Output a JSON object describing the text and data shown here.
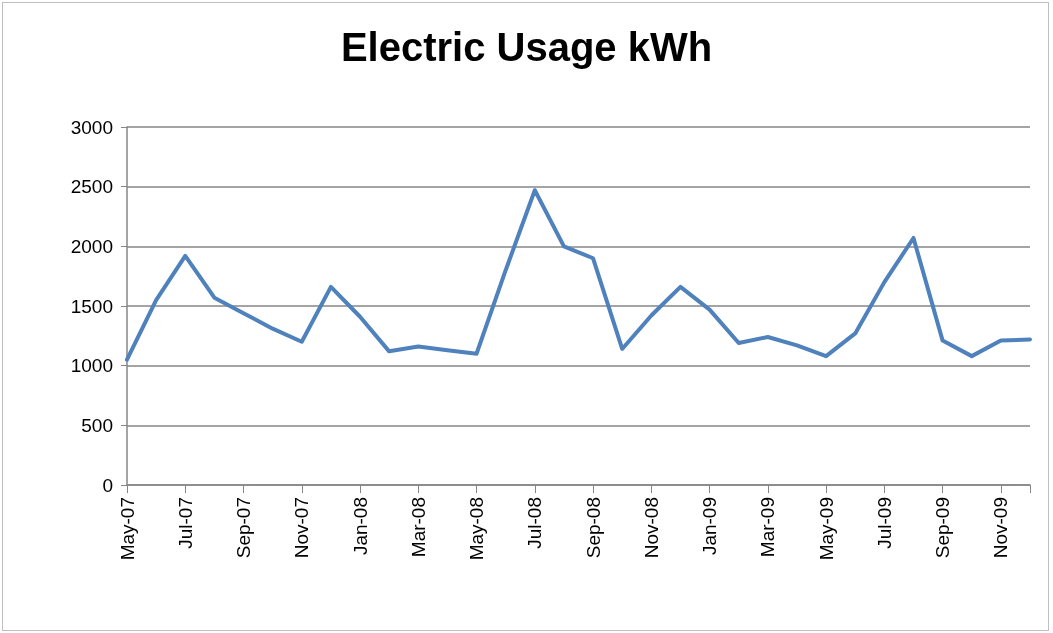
{
  "chart_data": {
    "type": "line",
    "title": "Electric Usage kWh",
    "categories": [
      "May-07",
      null,
      "Jul-07",
      null,
      "Sep-07",
      null,
      "Nov-07",
      null,
      "Jan-08",
      null,
      "Mar-08",
      null,
      "May-08",
      null,
      "Jul-08",
      null,
      "Sep-08",
      null,
      "Nov-08",
      null,
      "Jan-09",
      null,
      "Mar-09",
      null,
      "May-09",
      null,
      "Jul-09",
      null,
      "Sep-09",
      null,
      "Nov-09",
      null
    ],
    "values": [
      1050,
      1550,
      1920,
      1570,
      1440,
      1310,
      1200,
      1660,
      1410,
      1120,
      1160,
      1130,
      1100,
      1800,
      2470,
      2000,
      1900,
      1140,
      1420,
      1660,
      1470,
      1190,
      1240,
      1170,
      1080,
      1270,
      1700,
      2070,
      1210,
      1080,
      1210,
      1220
    ],
    "color": "#4f81bd",
    "ylim": [
      0,
      3000
    ],
    "yticks": [
      0,
      500,
      1000,
      1500,
      2000,
      2500,
      3000
    ],
    "grid": "y",
    "marker": "none",
    "line_style": "solid"
  }
}
